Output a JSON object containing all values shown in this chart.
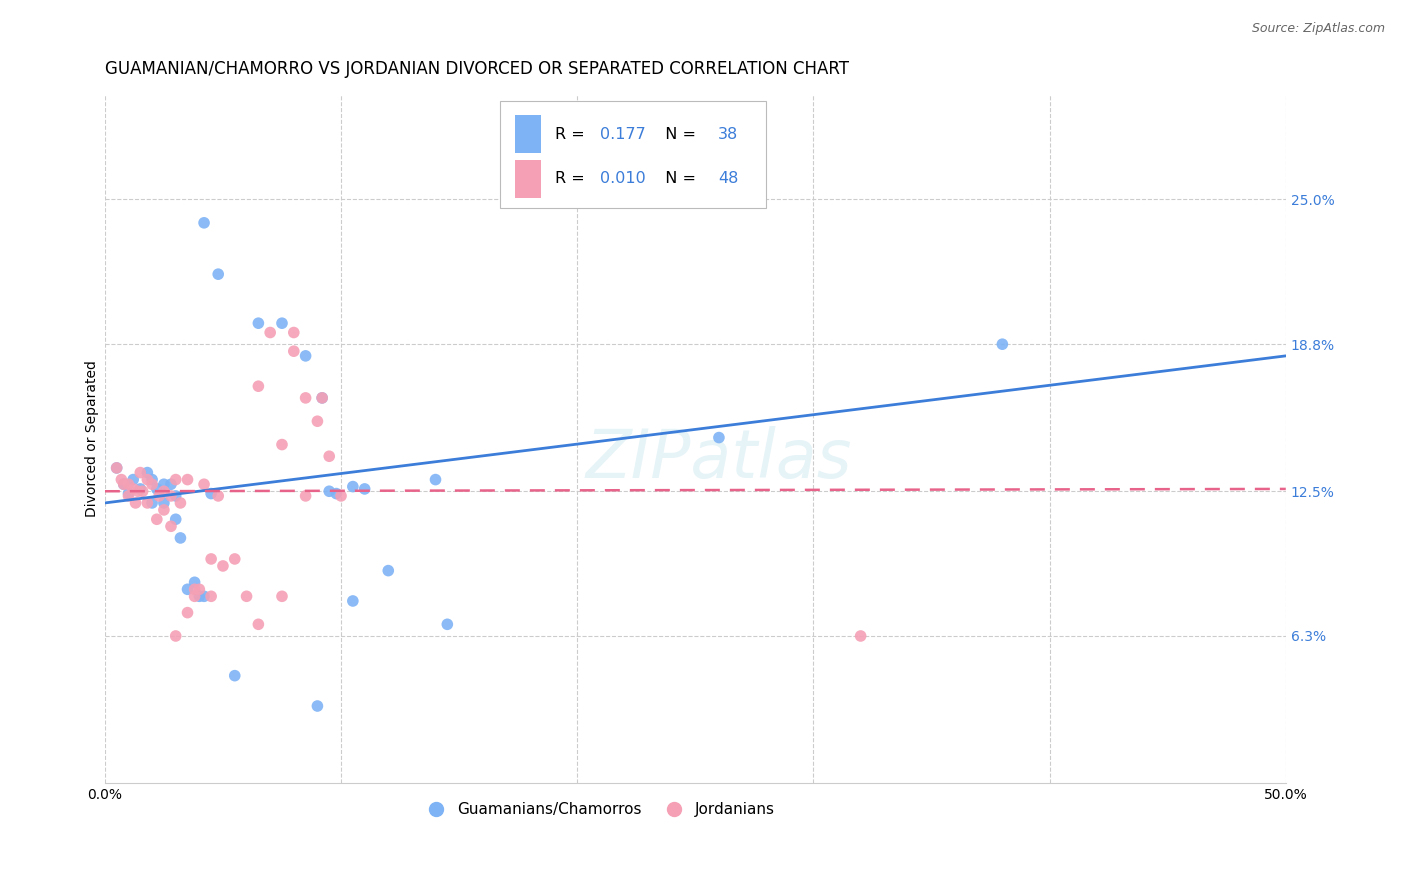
{
  "title": "GUAMANIAN/CHAMORRO VS JORDANIAN DIVORCED OR SEPARATED CORRELATION CHART",
  "source": "Source: ZipAtlas.com",
  "ylabel": "Divorced or Separated",
  "xlim": [
    0.0,
    0.5
  ],
  "ylim": [
    0.0,
    0.295
  ],
  "yticks": [
    0.063,
    0.125,
    0.188,
    0.25
  ],
  "ytick_labels": [
    "6.3%",
    "12.5%",
    "18.8%",
    "25.0%"
  ],
  "xticks": [
    0.0,
    0.1,
    0.2,
    0.3,
    0.4,
    0.5
  ],
  "xtick_labels": [
    "0.0%",
    "",
    "",
    "",
    "",
    "50.0%"
  ],
  "title_fontsize": 12,
  "source_fontsize": 9,
  "axis_label_fontsize": 10,
  "tick_fontsize": 10,
  "blue_color": "#7EB3F5",
  "pink_color": "#F5A0B5",
  "blue_line_color": "#3C7DD9",
  "pink_line_color": "#E8638A",
  "label1": "Guamanians/Chamorros",
  "label2": "Jordanians",
  "watermark": "ZIPatlas",
  "blue_points_x": [
    0.048,
    0.042,
    0.065,
    0.075,
    0.085,
    0.092,
    0.005,
    0.008,
    0.01,
    0.012,
    0.015,
    0.018,
    0.02,
    0.02,
    0.022,
    0.025,
    0.025,
    0.028,
    0.03,
    0.03,
    0.032,
    0.035,
    0.038,
    0.04,
    0.042,
    0.045,
    0.098,
    0.11,
    0.26,
    0.38,
    0.105,
    0.145,
    0.055,
    0.09,
    0.095,
    0.105,
    0.12,
    0.14
  ],
  "blue_points_y": [
    0.218,
    0.24,
    0.197,
    0.197,
    0.183,
    0.165,
    0.135,
    0.128,
    0.124,
    0.13,
    0.126,
    0.133,
    0.13,
    0.12,
    0.126,
    0.128,
    0.12,
    0.128,
    0.123,
    0.113,
    0.105,
    0.083,
    0.086,
    0.08,
    0.08,
    0.124,
    0.124,
    0.126,
    0.148,
    0.188,
    0.078,
    0.068,
    0.046,
    0.033,
    0.125,
    0.127,
    0.091,
    0.13
  ],
  "pink_points_x": [
    0.005,
    0.007,
    0.008,
    0.01,
    0.01,
    0.012,
    0.013,
    0.014,
    0.015,
    0.016,
    0.018,
    0.018,
    0.02,
    0.022,
    0.023,
    0.025,
    0.025,
    0.028,
    0.028,
    0.03,
    0.032,
    0.035,
    0.038,
    0.038,
    0.04,
    0.042,
    0.045,
    0.048,
    0.05,
    0.055,
    0.06,
    0.065,
    0.075,
    0.08,
    0.085,
    0.09,
    0.092,
    0.095,
    0.1,
    0.075,
    0.065,
    0.07,
    0.08,
    0.085,
    0.03,
    0.045,
    0.035,
    0.32
  ],
  "pink_points_y": [
    0.135,
    0.13,
    0.128,
    0.128,
    0.123,
    0.126,
    0.12,
    0.125,
    0.133,
    0.125,
    0.12,
    0.13,
    0.128,
    0.113,
    0.123,
    0.125,
    0.117,
    0.123,
    0.11,
    0.13,
    0.12,
    0.13,
    0.083,
    0.08,
    0.083,
    0.128,
    0.08,
    0.123,
    0.093,
    0.096,
    0.08,
    0.068,
    0.08,
    0.185,
    0.165,
    0.155,
    0.165,
    0.14,
    0.123,
    0.145,
    0.17,
    0.193,
    0.193,
    0.123,
    0.063,
    0.096,
    0.073,
    0.063
  ],
  "blue_trend_x": [
    0.0,
    0.5
  ],
  "blue_trend_y": [
    0.12,
    0.183
  ],
  "pink_trend_x": [
    0.0,
    0.5
  ],
  "pink_trend_y": [
    0.125,
    0.126
  ]
}
